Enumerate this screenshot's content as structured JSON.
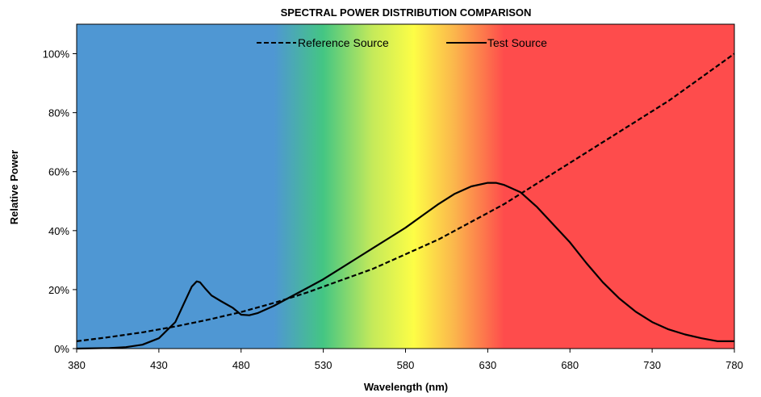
{
  "chart_data": {
    "type": "line",
    "title": "SPECTRAL POWER DISTRIBUTION COMPARISON",
    "xlabel": "Wavelength (nm)",
    "ylabel": "Relative Power",
    "xlim": [
      380,
      780
    ],
    "ylim": [
      0,
      1.1
    ],
    "x_ticks": [
      380,
      430,
      480,
      530,
      580,
      630,
      680,
      730,
      780
    ],
    "x_tick_labels": [
      "380",
      "430",
      "480",
      "530",
      "580",
      "630",
      "680",
      "730",
      "780"
    ],
    "y_ticks": [
      0,
      0.2,
      0.4,
      0.6,
      0.8,
      1.0
    ],
    "y_tick_labels": [
      "0%",
      "20%",
      "40%",
      "60%",
      "80%",
      "100%"
    ],
    "grid": false,
    "legend_position": "top-center",
    "background": "visible-spectrum gradient",
    "gradient_stops": [
      {
        "nm": 380,
        "color": "#4f97d3"
      },
      {
        "nm": 500,
        "color": "#4f97d3"
      },
      {
        "nm": 530,
        "color": "#44c683"
      },
      {
        "nm": 560,
        "color": "#c5ea5a"
      },
      {
        "nm": 585,
        "color": "#fdfd46"
      },
      {
        "nm": 610,
        "color": "#fbb54c"
      },
      {
        "nm": 640,
        "color": "#fe4c4c"
      },
      {
        "nm": 780,
        "color": "#fe4c4c"
      }
    ],
    "series": [
      {
        "name": "Reference Source",
        "style": "dashed",
        "color": "#000000",
        "x": [
          380,
          400,
          420,
          440,
          460,
          480,
          500,
          520,
          540,
          560,
          580,
          600,
          620,
          640,
          660,
          680,
          700,
          720,
          740,
          760,
          780
        ],
        "y": [
          0.025,
          0.039,
          0.055,
          0.075,
          0.098,
          0.124,
          0.155,
          0.19,
          0.23,
          0.27,
          0.32,
          0.37,
          0.43,
          0.49,
          0.56,
          0.63,
          0.7,
          0.77,
          0.84,
          0.92,
          1.0
        ]
      },
      {
        "name": "Test Source",
        "style": "solid",
        "color": "#000000",
        "x": [
          380,
          400,
          410,
          420,
          430,
          440,
          445,
          450,
          453,
          455,
          458,
          462,
          468,
          475,
          480,
          485,
          490,
          500,
          510,
          520,
          530,
          540,
          550,
          560,
          570,
          580,
          590,
          600,
          610,
          620,
          630,
          635,
          640,
          650,
          660,
          670,
          680,
          690,
          700,
          710,
          720,
          730,
          740,
          750,
          760,
          770,
          780
        ],
        "y": [
          0.0,
          0.002,
          0.005,
          0.013,
          0.035,
          0.09,
          0.15,
          0.21,
          0.228,
          0.225,
          0.205,
          0.18,
          0.16,
          0.138,
          0.115,
          0.113,
          0.12,
          0.145,
          0.175,
          0.205,
          0.235,
          0.27,
          0.305,
          0.34,
          0.375,
          0.41,
          0.45,
          0.49,
          0.525,
          0.55,
          0.562,
          0.562,
          0.555,
          0.53,
          0.48,
          0.42,
          0.36,
          0.29,
          0.225,
          0.17,
          0.125,
          0.09,
          0.065,
          0.048,
          0.035,
          0.025,
          0.025
        ]
      }
    ]
  }
}
